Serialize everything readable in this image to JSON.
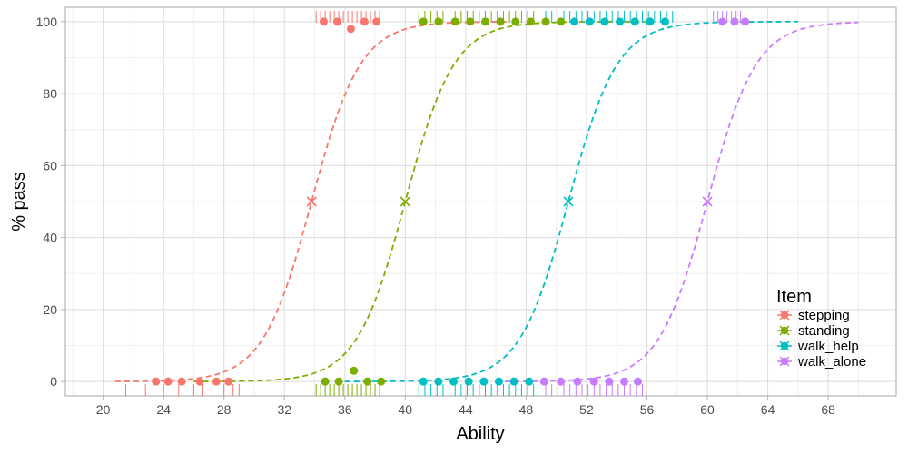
{
  "chart_data": {
    "type": "scatter",
    "title": "",
    "xlabel": "Ability",
    "ylabel": "% pass",
    "xlim": [
      17.5,
      72.5
    ],
    "ylim": [
      -4,
      104
    ],
    "x_ticks": [
      20,
      24,
      28,
      32,
      36,
      40,
      44,
      48,
      52,
      56,
      60,
      64,
      68
    ],
    "x_tick_labels": [
      "20",
      "24",
      "28",
      "32",
      "36",
      "40",
      "44",
      "48",
      "52",
      "56",
      "60",
      "64",
      "68"
    ],
    "y_ticks": [
      0,
      20,
      40,
      60,
      80,
      100
    ],
    "y_tick_labels": [
      "0",
      "20",
      "40",
      "60",
      "80",
      "100"
    ],
    "grid": true,
    "legend": {
      "title": "Item",
      "position": "bottom-right",
      "entries": [
        "stepping",
        "standing",
        "walk_help",
        "walk_alone"
      ]
    },
    "series": [
      {
        "name": "stepping",
        "color": "#F8766D",
        "threshold": 33.8,
        "curve": {
          "x_start": 20.8,
          "x_end": 46.8,
          "slope": 0.62
        },
        "points": [
          [
            23.5,
            0
          ],
          [
            24.3,
            0
          ],
          [
            25.2,
            0
          ],
          [
            26.4,
            0
          ],
          [
            27.5,
            0
          ],
          [
            28.3,
            0
          ],
          [
            34.6,
            100
          ],
          [
            35.5,
            100
          ],
          [
            36.4,
            98
          ],
          [
            37.3,
            100
          ],
          [
            38.1,
            100
          ]
        ],
        "rug_bottom": [
          21.5,
          22.8,
          24.0,
          25.0,
          26.0,
          26.6,
          27.2,
          28.0,
          28.6,
          29.0
        ],
        "rug_top": [
          34.1,
          34.4,
          34.7,
          35.0,
          35.3,
          35.6,
          35.9,
          36.2,
          36.5,
          36.8,
          37.1,
          37.4,
          37.7,
          38.0,
          38.3
        ]
      },
      {
        "name": "standing",
        "color": "#7CAE00",
        "threshold": 40.0,
        "curve": {
          "x_start": 26.0,
          "x_end": 56.0,
          "slope": 0.62
        },
        "points": [
          [
            34.7,
            0
          ],
          [
            35.6,
            0
          ],
          [
            36.6,
            3
          ],
          [
            37.5,
            0
          ],
          [
            38.4,
            0
          ],
          [
            41.2,
            100
          ],
          [
            42.2,
            100
          ],
          [
            43.3,
            100
          ],
          [
            44.3,
            100
          ],
          [
            45.3,
            100
          ],
          [
            46.3,
            100
          ],
          [
            47.3,
            100
          ],
          [
            48.3,
            100
          ],
          [
            49.3,
            100
          ],
          [
            50.3,
            100
          ]
        ],
        "rug_bottom": [
          34.1,
          34.4,
          34.7,
          35.0,
          35.3,
          35.6,
          35.9,
          36.2,
          36.5,
          36.8,
          37.1,
          37.4,
          37.7,
          38.0,
          38.3
        ],
        "rug_top": [
          40.9,
          41.3,
          41.7,
          42.1,
          42.5,
          42.9,
          43.3,
          43.7,
          44.1,
          44.5,
          44.9,
          45.3,
          45.7,
          46.1,
          46.5,
          46.9,
          47.3,
          47.7,
          48.1,
          48.5
        ]
      },
      {
        "name": "walk_help",
        "color": "#00BFC4",
        "threshold": 50.8,
        "curve": {
          "x_start": 36.0,
          "x_end": 66.0,
          "slope": 0.62
        },
        "points": [
          [
            41.2,
            0
          ],
          [
            42.2,
            0
          ],
          [
            43.2,
            0
          ],
          [
            44.2,
            0
          ],
          [
            45.2,
            0
          ],
          [
            46.2,
            0
          ],
          [
            47.2,
            0
          ],
          [
            48.2,
            0
          ],
          [
            51.2,
            100
          ],
          [
            52.2,
            100
          ],
          [
            53.2,
            100
          ],
          [
            54.2,
            100
          ],
          [
            55.2,
            100
          ],
          [
            56.2,
            100
          ],
          [
            57.2,
            100
          ]
        ],
        "rug_bottom": [
          40.9,
          41.3,
          41.7,
          42.1,
          42.5,
          42.9,
          43.3,
          43.7,
          44.1,
          44.5,
          44.9,
          45.3,
          45.7,
          46.1,
          46.5,
          46.9,
          47.3,
          47.7,
          48.1,
          48.5
        ],
        "rug_top": [
          49.3,
          49.7,
          50.1,
          50.5,
          50.9,
          51.3,
          51.7,
          52.1,
          52.5,
          52.9,
          53.3,
          53.7,
          54.1,
          54.5,
          54.9,
          55.3,
          55.7,
          56.1,
          56.5,
          56.9,
          57.3,
          57.7
        ]
      },
      {
        "name": "walk_alone",
        "color": "#C77CFF",
        "threshold": 60.0,
        "curve": {
          "x_start": 46.0,
          "x_end": 70.0,
          "slope": 0.62
        },
        "points": [
          [
            49.2,
            0
          ],
          [
            50.3,
            0
          ],
          [
            51.4,
            0
          ],
          [
            52.5,
            0
          ],
          [
            53.5,
            0
          ],
          [
            54.5,
            0
          ],
          [
            55.4,
            0
          ],
          [
            61.0,
            100
          ],
          [
            61.8,
            100
          ],
          [
            62.5,
            100
          ]
        ],
        "rug_bottom": [
          49.3,
          49.7,
          50.1,
          50.5,
          50.9,
          51.3,
          51.7,
          52.1,
          52.5,
          52.9,
          53.3,
          53.7,
          54.1,
          54.5,
          54.9,
          55.3,
          55.7
        ],
        "rug_top": [
          60.4,
          60.7,
          61.0,
          61.3,
          61.6,
          61.9,
          62.2,
          62.5
        ]
      }
    ]
  }
}
